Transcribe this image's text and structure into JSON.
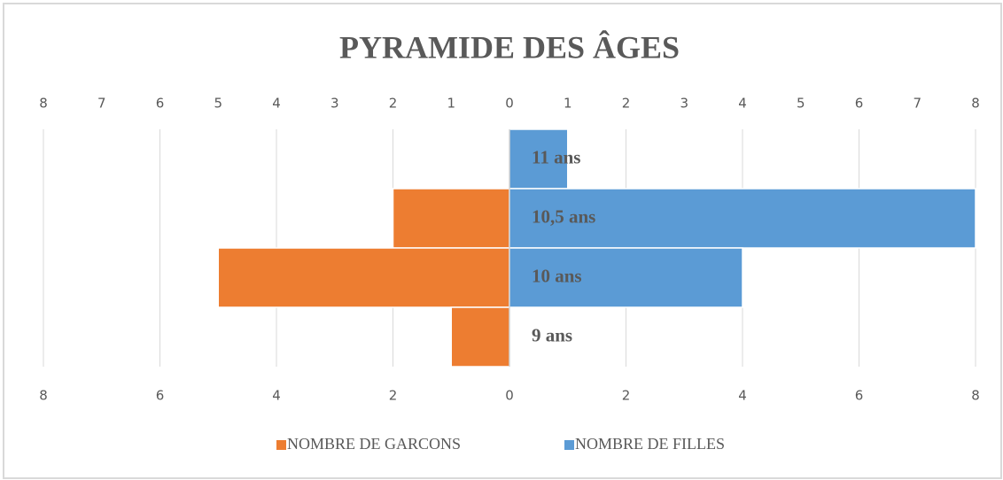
{
  "chart_data": {
    "type": "pyramid",
    "title": "PYRAMIDE DES ÂGES",
    "categories": [
      "11 ans",
      "10,5 ans",
      "10 ans",
      "9 ans"
    ],
    "series": [
      {
        "name": "NOMBRE DE GARCONS",
        "color": "#ED7D31",
        "values": [
          0,
          -2,
          -5,
          -1
        ]
      },
      {
        "name": "NOMBRE DE FILLES",
        "color": "#5B9BD5",
        "values": [
          1,
          8,
          4,
          0
        ]
      }
    ],
    "xlim": [
      -8,
      8
    ],
    "xticks": [
      {
        "value": -8,
        "label": "8"
      },
      {
        "value": -6,
        "label": "6"
      },
      {
        "value": -4,
        "label": "4"
      },
      {
        "value": -2,
        "label": "2"
      },
      0,
      2,
      4,
      6,
      8
    ],
    "x2lim": [
      -8,
      8
    ],
    "x2ticks": [
      {
        "value": -8,
        "label": "8"
      },
      {
        "value": -7,
        "label": "7"
      },
      {
        "value": -6,
        "label": "6"
      },
      {
        "value": -5,
        "label": "5"
      },
      {
        "value": -4,
        "label": "4"
      },
      {
        "value": -3,
        "label": "3"
      },
      {
        "value": -2,
        "label": "2"
      },
      {
        "value": -1,
        "label": "1"
      },
      0,
      1,
      2,
      3,
      4,
      5,
      6,
      7,
      8
    ],
    "grid": true,
    "legend": "bottom"
  }
}
